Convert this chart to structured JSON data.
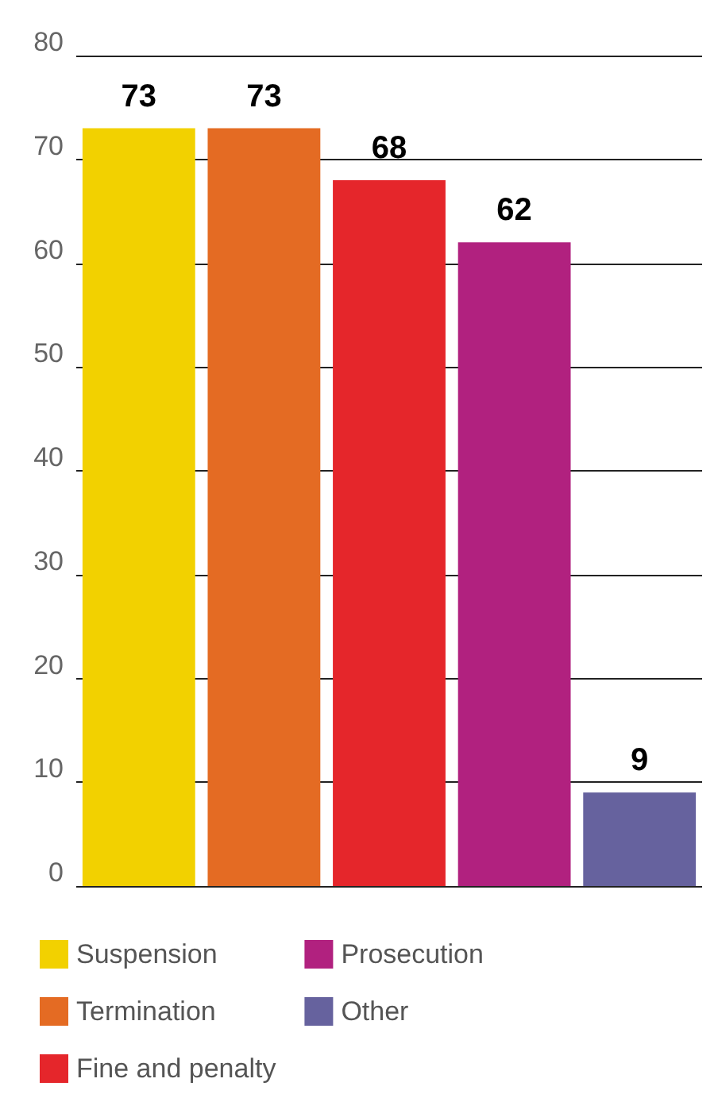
{
  "chart_data": {
    "type": "bar",
    "categories": [
      null,
      null,
      null,
      null,
      null
    ],
    "series": [
      {
        "name": "Suspension",
        "color": "#f2d100",
        "values": [
          73,
          null,
          null,
          null,
          null
        ]
      },
      {
        "name": "Termination",
        "color": "#e46b23",
        "values": [
          null,
          73,
          null,
          null,
          null
        ]
      },
      {
        "name": "Fine and penalty",
        "color": "#e5262b",
        "values": [
          null,
          null,
          68,
          null,
          null
        ]
      },
      {
        "name": "Prosecution",
        "color": "#b1217f",
        "values": [
          null,
          null,
          null,
          62,
          null
        ]
      },
      {
        "name": "Other",
        "color": "#66629e",
        "values": [
          null,
          null,
          null,
          null,
          9
        ]
      }
    ],
    "ylim": [
      0,
      80
    ],
    "yticks": [
      0,
      10,
      20,
      30,
      40,
      50,
      60,
      70,
      80
    ],
    "grid": "y",
    "legend": "bottom",
    "tick_labels": "y",
    "data_labels": true
  }
}
